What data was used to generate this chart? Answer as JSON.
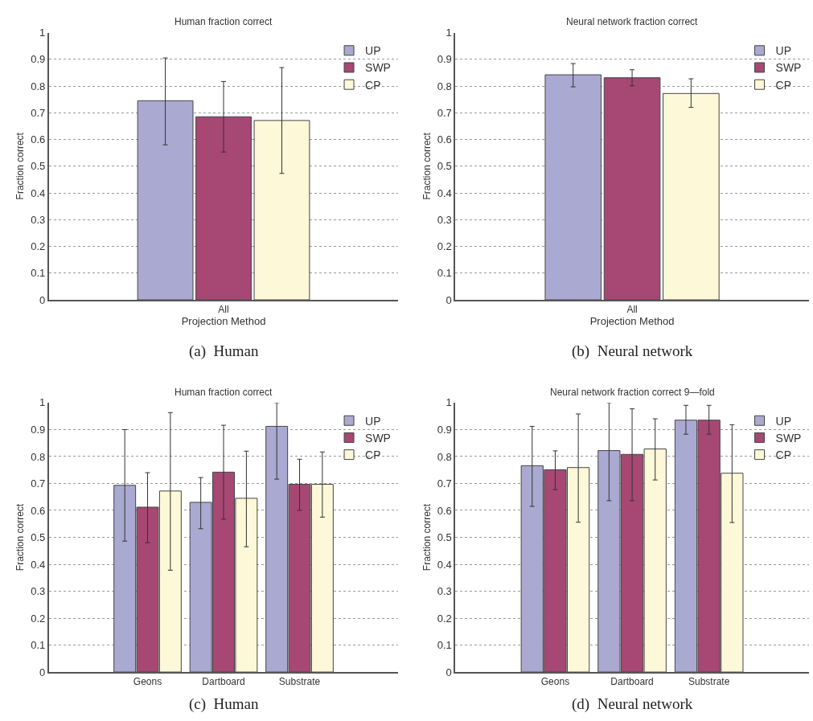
{
  "chart_data": [
    {
      "type": "bar",
      "title": "Human fraction correct",
      "xlabel": "Projection Method",
      "ylabel": "Fraction correct",
      "categories": [
        "All"
      ],
      "series": [
        {
          "name": "UP",
          "color": "#aaa9d2",
          "values": [
            0.745
          ],
          "errors": [
            [
              0.58,
              0.905
            ]
          ]
        },
        {
          "name": "SWP",
          "color": "#a64873",
          "values": [
            0.685
          ],
          "errors": [
            [
              0.553,
              0.817
            ]
          ]
        },
        {
          "name": "CP",
          "color": "#fdf8d8",
          "values": [
            0.671
          ],
          "errors": [
            [
              0.473,
              0.869
            ]
          ]
        }
      ],
      "ylim": [
        0,
        1
      ],
      "yticks": [
        0,
        0.1,
        0.2,
        0.3,
        0.4,
        0.5,
        0.6,
        0.7,
        0.8,
        0.9,
        1
      ],
      "grid": "y",
      "legend": "top right",
      "annotations": [
        "(a)  Human"
      ]
    },
    {
      "type": "bar",
      "title": "Neural network fraction correct",
      "xlabel": "Projection Method",
      "ylabel": "Fraction correct",
      "categories": [
        "All"
      ],
      "series": [
        {
          "name": "UP",
          "color": "#aaa9d2",
          "values": [
            0.842
          ],
          "errors": [
            [
              0.797,
              0.884
            ]
          ]
        },
        {
          "name": "SWP",
          "color": "#a64873",
          "values": [
            0.831
          ],
          "errors": [
            [
              0.801,
              0.861
            ]
          ]
        },
        {
          "name": "CP",
          "color": "#fdf8d8",
          "values": [
            0.772
          ],
          "errors": [
            [
              0.72,
              0.827
            ]
          ]
        }
      ],
      "ylim": [
        0,
        1
      ],
      "yticks": [
        0,
        0.1,
        0.2,
        0.3,
        0.4,
        0.5,
        0.6,
        0.7,
        0.8,
        0.9,
        1
      ],
      "grid": "y",
      "legend": "top right",
      "annotations": [
        "(b)  Neural network"
      ]
    },
    {
      "type": "bar",
      "title": "Human fraction correct",
      "ylabel": "Fraction correct",
      "categories": [
        "Geons",
        "Dartboard",
        "Substrate"
      ],
      "series": [
        {
          "name": "UP",
          "color": "#aaa9d2",
          "values": [
            0.693,
            0.63,
            0.912
          ],
          "errors": [
            [
              0.486,
              0.9
            ],
            [
              0.532,
              0.722
            ],
            [
              0.716,
              1.0
            ]
          ]
        },
        {
          "name": "SWP",
          "color": "#a64873",
          "values": [
            0.612,
            0.742,
            0.697
          ],
          "errors": [
            [
              0.48,
              0.74
            ],
            [
              0.567,
              0.916
            ],
            [
              0.6,
              0.79
            ]
          ]
        },
        {
          "name": "CP",
          "color": "#fdf8d8",
          "values": [
            0.672,
            0.645,
            0.697
          ],
          "errors": [
            [
              0.378,
              0.963
            ],
            [
              0.465,
              0.82
            ],
            [
              0.575,
              0.817
            ]
          ]
        }
      ],
      "ylim": [
        0,
        1
      ],
      "yticks": [
        0,
        0.1,
        0.2,
        0.3,
        0.4,
        0.5,
        0.6,
        0.7,
        0.8,
        0.9,
        1
      ],
      "grid": "y",
      "legend": "top right",
      "annotations": [
        "(c)  Human"
      ]
    },
    {
      "type": "bar",
      "title": "Neural network fraction correct 9—fold",
      "ylabel": "Fraction correct",
      "categories": [
        "Geons",
        "Dartboard",
        "Substrate"
      ],
      "series": [
        {
          "name": "UP",
          "color": "#aaa9d2",
          "values": [
            0.766,
            0.822,
            0.935
          ],
          "errors": [
            [
              0.615,
              0.912
            ],
            [
              0.636,
              1.0
            ],
            [
              0.883,
              0.99
            ]
          ]
        },
        {
          "name": "SWP",
          "color": "#a64873",
          "values": [
            0.751,
            0.808,
            0.935
          ],
          "errors": [
            [
              0.677,
              0.821
            ],
            [
              0.636,
              0.977
            ],
            [
              0.883,
              0.99
            ]
          ]
        },
        {
          "name": "CP",
          "color": "#fdf8d8",
          "values": [
            0.759,
            0.828,
            0.738
          ],
          "errors": [
            [
              0.556,
              0.958
            ],
            [
              0.713,
              0.94
            ],
            [
              0.555,
              0.918
            ]
          ]
        }
      ],
      "ylim": [
        0,
        1
      ],
      "yticks": [
        0,
        0.1,
        0.2,
        0.3,
        0.4,
        0.5,
        0.6,
        0.7,
        0.8,
        0.9,
        1
      ],
      "grid": "y",
      "legend": "top right",
      "annotations": [
        "(d)  Neural network"
      ]
    }
  ]
}
